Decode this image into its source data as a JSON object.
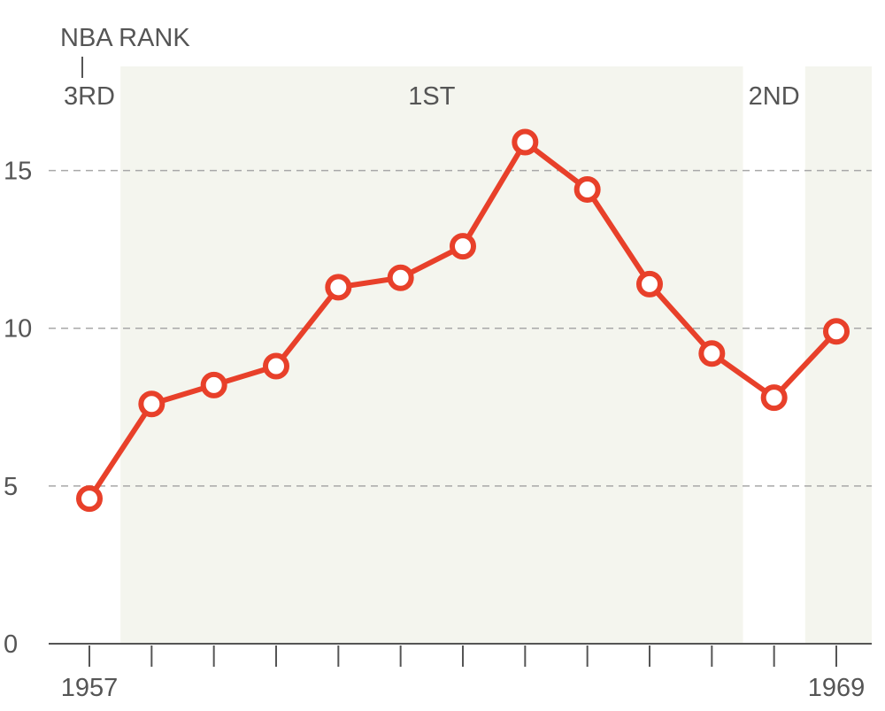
{
  "chart_data": {
    "type": "line",
    "title": "NBA RANK",
    "x": [
      1957,
      1958,
      1959,
      1960,
      1961,
      1962,
      1963,
      1964,
      1965,
      1966,
      1967,
      1968,
      1969
    ],
    "series": [
      {
        "values": [
          4.6,
          7.6,
          8.2,
          8.8,
          11.3,
          11.6,
          12.6,
          15.9,
          14.4,
          11.4,
          9.2,
          7.8,
          9.9
        ]
      }
    ],
    "xtick_labels": [
      {
        "x": 1957,
        "label": "1957"
      },
      {
        "x": 1969,
        "label": "1969"
      }
    ],
    "yticks": [
      0,
      5,
      10,
      15
    ],
    "ylim": [
      0,
      18.3
    ],
    "xlim": [
      1956.4,
      1969.6
    ],
    "grid": true,
    "rank_bands": [
      {
        "start": 1956.5,
        "end": 1957.5,
        "label": "3RD",
        "shaded": false
      },
      {
        "start": 1957.5,
        "end": 1967.5,
        "label": "1ST",
        "shaded": true
      },
      {
        "start": 1967.5,
        "end": 1968.5,
        "label": "2ND",
        "shaded": false
      },
      {
        "start": 1968.5,
        "end": 1969.6,
        "label": "",
        "shaded": true
      }
    ],
    "colors": {
      "line": "#e8402a",
      "band": "#f4f5ee",
      "text": "#555555"
    }
  }
}
